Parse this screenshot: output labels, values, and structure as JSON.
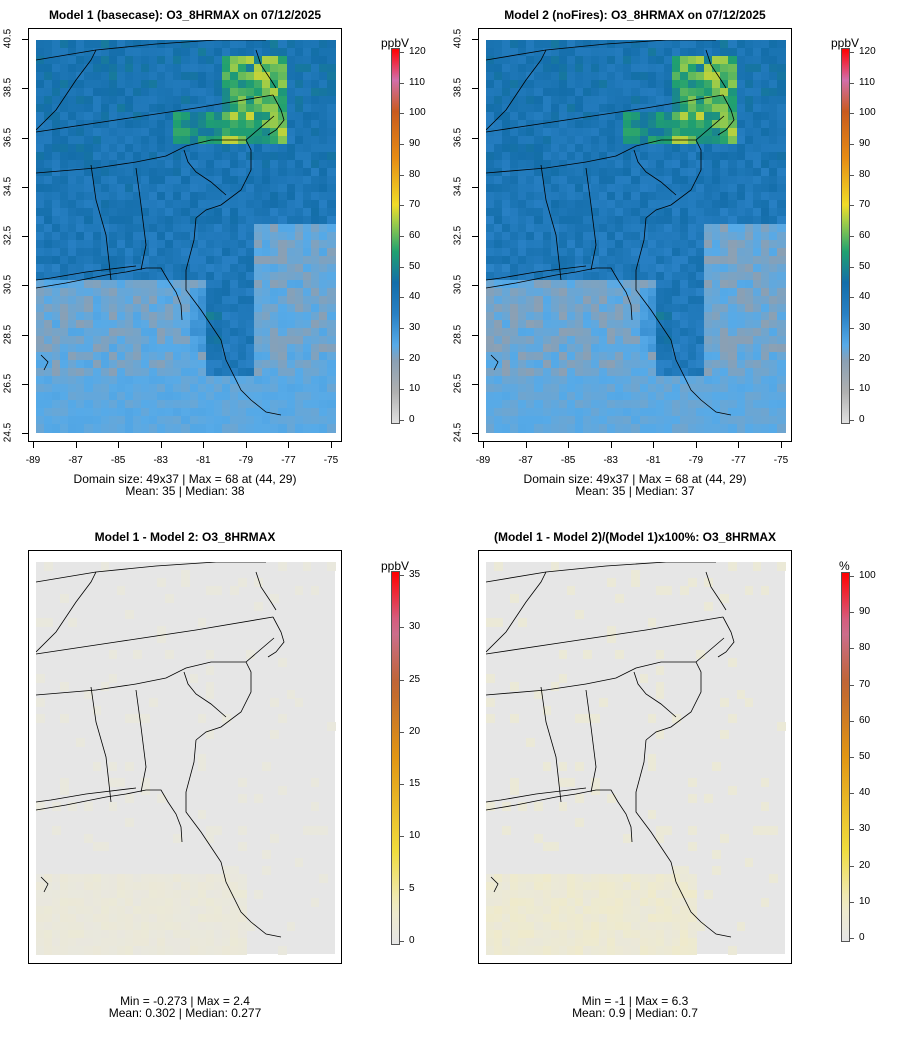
{
  "panels": [
    {
      "id": "model1",
      "title": "Model 1 (basecase): O3_8HRMAX on 07/12/2025",
      "stats_line1": "Domain size: 49x37 | Max = 68 at (44, 29)",
      "stats_line2": "Mean: 35 |  Median: 38",
      "unit": "ppbV",
      "colorbar_ticks": [
        "0",
        "10",
        "20",
        "30",
        "40",
        "50",
        "60",
        "70",
        "80",
        "90",
        "100",
        "110",
        "120"
      ],
      "colorbar_range": [
        0,
        120
      ],
      "xticks": [
        "-89",
        "-87",
        "-85",
        "-83",
        "-81",
        "-79",
        "-77",
        "-75"
      ],
      "yticks": [
        "24.5",
        "26.5",
        "28.5",
        "30.5",
        "32.5",
        "34.5",
        "36.5",
        "38.5",
        "40.5"
      ]
    },
    {
      "id": "model2",
      "title": "Model 2 (noFires): O3_8HRMAX on 07/12/2025",
      "stats_line1": "Domain size: 49x37 | Max = 68 at (44, 29)",
      "stats_line2": "Mean: 35 |  Median: 37",
      "unit": "ppbV",
      "colorbar_ticks": [
        "0",
        "10",
        "20",
        "30",
        "40",
        "50",
        "60",
        "70",
        "80",
        "90",
        "100",
        "110",
        "120"
      ],
      "colorbar_range": [
        0,
        120
      ],
      "xticks": [
        "-89",
        "-87",
        "-85",
        "-83",
        "-81",
        "-79",
        "-77",
        "-75"
      ],
      "yticks": [
        "24.5",
        "26.5",
        "28.5",
        "30.5",
        "32.5",
        "34.5",
        "36.5",
        "38.5",
        "40.5"
      ]
    },
    {
      "id": "diff",
      "title": "Model 1 - Model 2: O3_8HRMAX",
      "stats_line1": "Min = -0.273 | Max = 2.4",
      "stats_line2": "Mean: 0.302 |  Median: 0.277",
      "unit": "ppbV",
      "colorbar_ticks": [
        "0",
        "5",
        "10",
        "15",
        "20",
        "25",
        "30",
        "35"
      ],
      "colorbar_range": [
        0,
        35
      ]
    },
    {
      "id": "pctdiff",
      "title": "(Model 1 - Model 2)/(Model 1)x100%: O3_8HRMAX",
      "stats_line1": "Min = -1 | Max = 6.3",
      "stats_line2": "Mean: 0.9 |  Median: 0.7",
      "unit": "%",
      "colorbar_ticks": [
        "0",
        "10",
        "20",
        "30",
        "40",
        "50",
        "60",
        "70",
        "80",
        "90",
        "100"
      ],
      "colorbar_range": [
        0,
        100
      ]
    }
  ],
  "chart_data": [
    {
      "type": "heatmap",
      "title": "Model 1 (basecase): O3_8HRMAX on 07/12/2025",
      "variable": "O3_8HRMAX",
      "unit": "ppbV",
      "grid": [
        49,
        37
      ],
      "max": 68,
      "max_at": [
        44,
        29
      ],
      "mean": 35,
      "median": 38,
      "xlim": [
        -89,
        -75
      ],
      "ylim": [
        24.5,
        40.5
      ],
      "colorbar": [
        0,
        120
      ]
    },
    {
      "type": "heatmap",
      "title": "Model 2 (noFires): O3_8HRMAX on 07/12/2025",
      "variable": "O3_8HRMAX",
      "unit": "ppbV",
      "grid": [
        49,
        37
      ],
      "max": 68,
      "max_at": [
        44,
        29
      ],
      "mean": 35,
      "median": 37,
      "xlim": [
        -89,
        -75
      ],
      "ylim": [
        24.5,
        40.5
      ],
      "colorbar": [
        0,
        120
      ]
    },
    {
      "type": "heatmap",
      "title": "Model 1 - Model 2: O3_8HRMAX",
      "unit": "ppbV",
      "min": -0.273,
      "max": 2.4,
      "mean": 0.302,
      "median": 0.277,
      "colorbar": [
        0,
        35
      ]
    },
    {
      "type": "heatmap",
      "title": "(Model 1 - Model 2)/(Model 1)x100%: O3_8HRMAX",
      "unit": "%",
      "min": -1,
      "max": 6.3,
      "mean": 0.9,
      "median": 0.7,
      "colorbar": [
        0,
        100
      ]
    }
  ]
}
